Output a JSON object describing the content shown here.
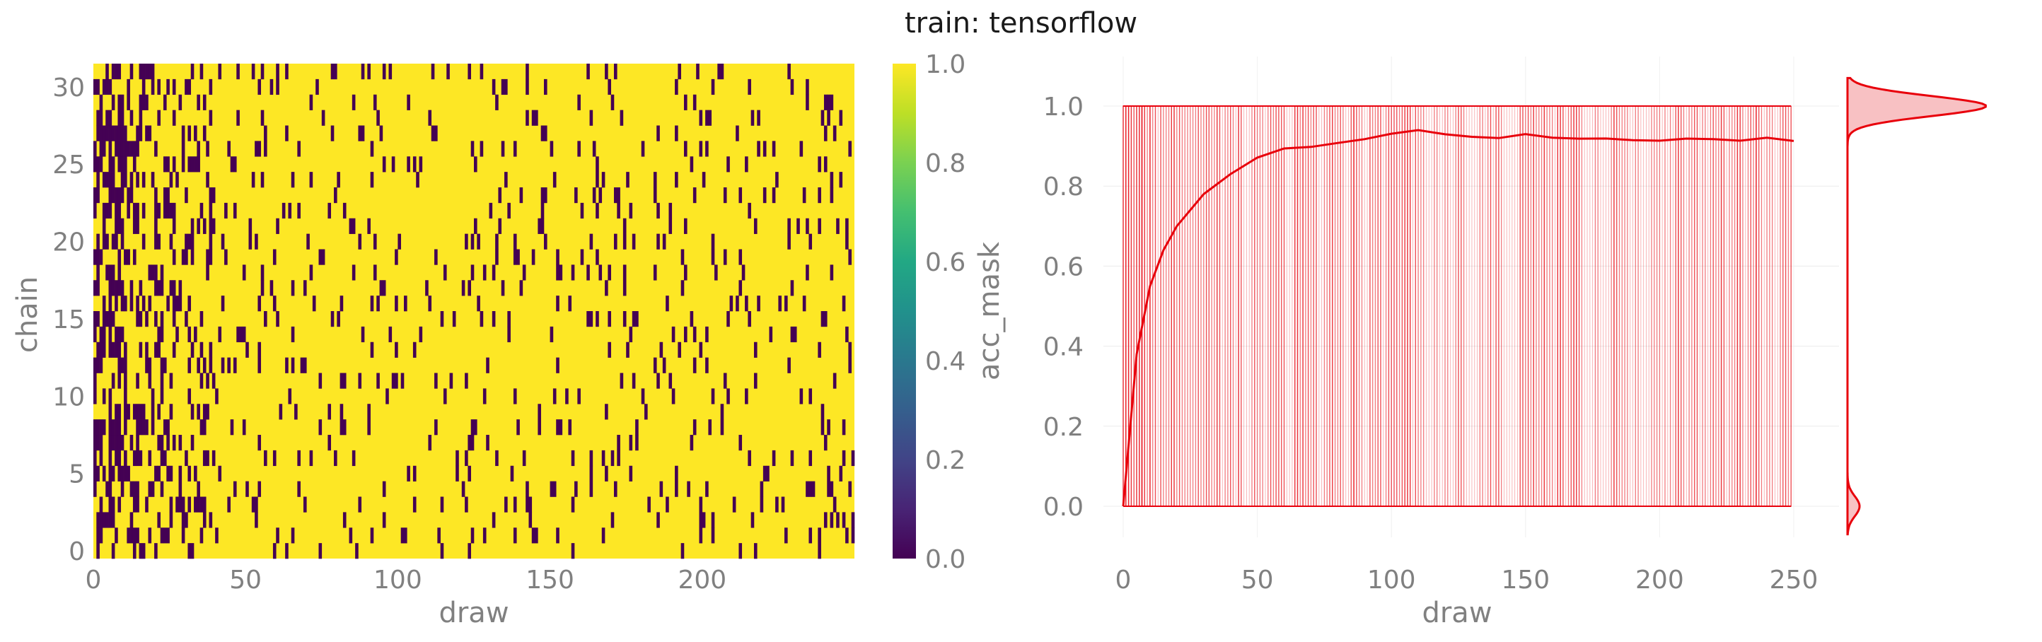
{
  "figure": {
    "title": "train: tensorflow"
  },
  "chart_data": [
    {
      "type": "heatmap",
      "xlabel": "draw",
      "ylabel": "chain",
      "xlim": [
        0,
        250
      ],
      "ylim": [
        0,
        32
      ],
      "x_ticks": [
        0,
        50,
        100,
        150,
        200
      ],
      "y_ticks": [
        0,
        5,
        10,
        15,
        20,
        25,
        30
      ],
      "n_chains": 32,
      "n_draws": 250,
      "values_encoding": "binary acceptance mask per chain and draw (1 = accepted, 0 = rejected)",
      "rejection_rate_profile": {
        "early_draws_0_to_10": 0.55,
        "draws_10_to_40": 0.2,
        "draws_after_50": 0.08
      },
      "colorbar": {
        "label": "acc_mask",
        "range": [
          0.0,
          1.0
        ],
        "ticks": [
          0.0,
          0.2,
          0.4,
          0.6,
          0.8,
          1.0
        ],
        "colormap": "viridis"
      },
      "colors": {
        "low": "#440154",
        "high": "#fde725"
      }
    },
    {
      "type": "line",
      "xlabel": "draw",
      "ylabel": "",
      "xlim": [
        0,
        250
      ],
      "ylim": [
        0.0,
        1.0
      ],
      "x_ticks": [
        0,
        50,
        100,
        150,
        200,
        250
      ],
      "y_ticks": [
        0.0,
        0.2,
        0.4,
        0.6,
        0.8,
        1.0
      ],
      "grid": true,
      "series": [
        {
          "role": "individual chain acceptance (binary, 0 or 1)",
          "values_range": [
            0,
            1
          ],
          "color": "#e8000b",
          "opacity": 0.35
        },
        {
          "role": "mean acceptance across chains",
          "x": [
            0,
            5,
            10,
            15,
            20,
            30,
            40,
            50,
            60,
            70,
            80,
            90,
            100,
            110,
            120,
            130,
            140,
            150,
            160,
            170,
            180,
            190,
            200,
            210,
            220,
            230,
            240,
            250
          ],
          "values": [
            0.0,
            0.38,
            0.55,
            0.64,
            0.7,
            0.78,
            0.83,
            0.87,
            0.89,
            0.9,
            0.91,
            0.92,
            0.93,
            0.94,
            0.93,
            0.925,
            0.92,
            0.925,
            0.92,
            0.915,
            0.915,
            0.91,
            0.91,
            0.915,
            0.92,
            0.915,
            0.92,
            0.915
          ],
          "color": "#e8000b"
        }
      ],
      "marginal_density": {
        "type": "kde",
        "orientation": "vertical",
        "modes": [
          {
            "y": 1.0,
            "weight": 0.92
          },
          {
            "y": 0.0,
            "weight": 0.08
          }
        ],
        "color": "#e8000b",
        "fill": "#f8c1c3"
      }
    }
  ]
}
